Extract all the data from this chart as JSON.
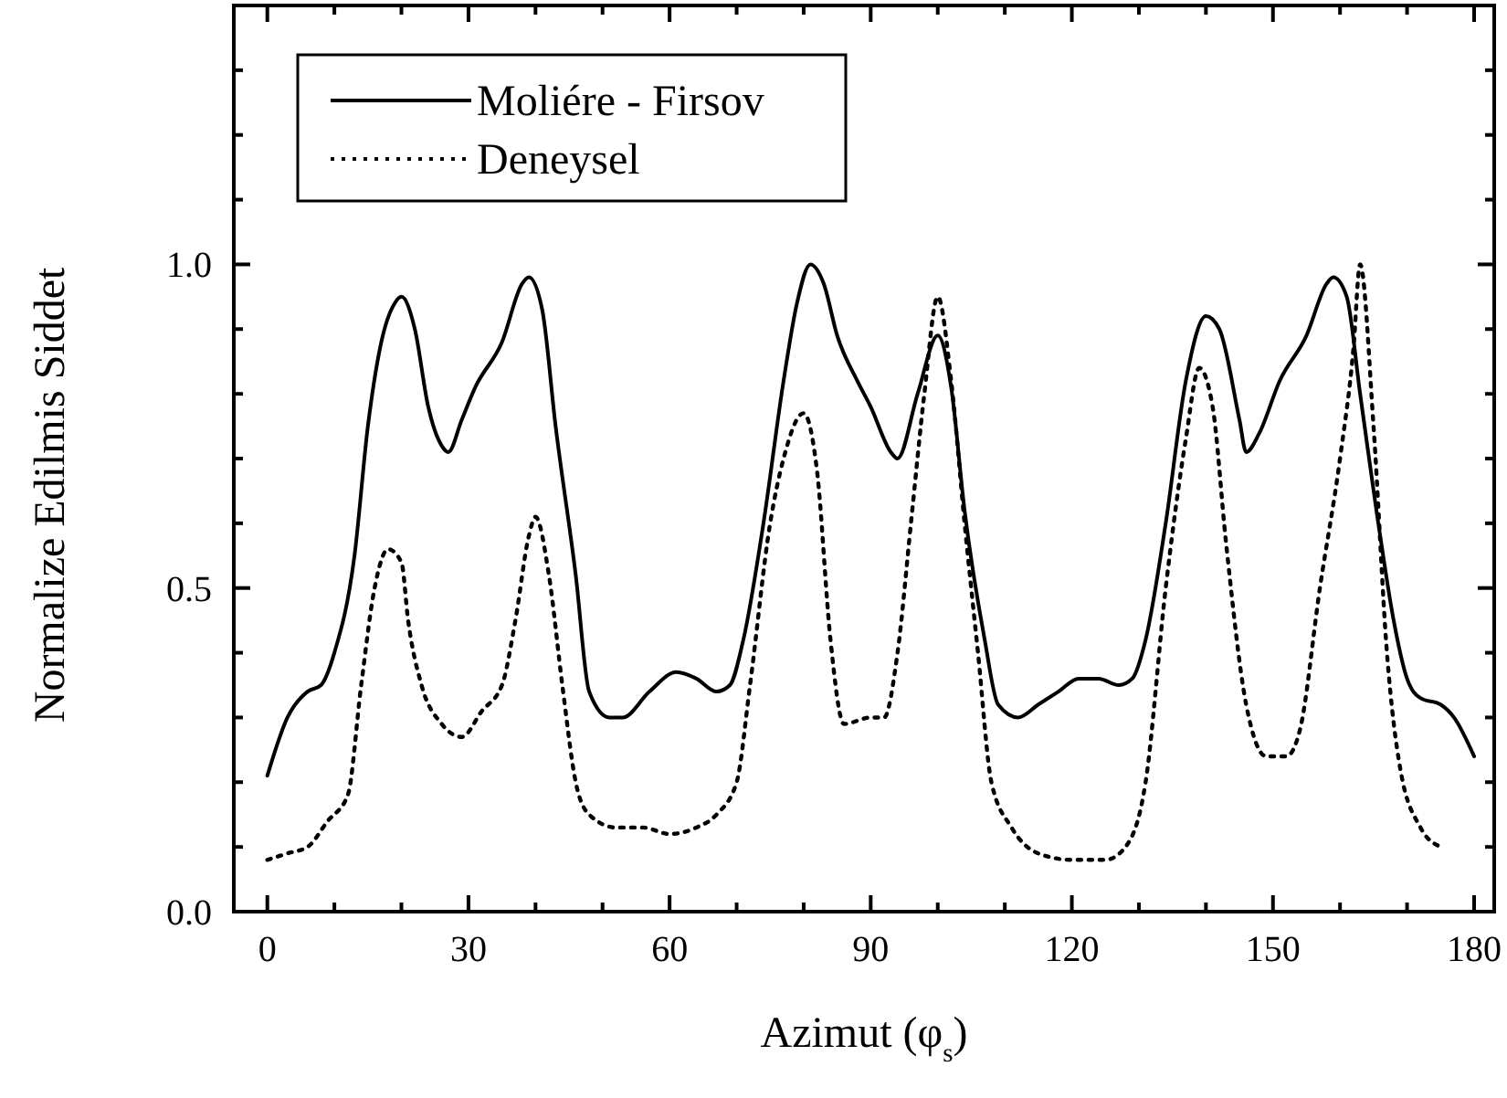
{
  "chart_data": {
    "type": "line",
    "xlabel": "Azimut (φ$_{s}$)",
    "ylabel": "Normalize Edilmis Siddet",
    "xlim": [
      -5,
      183
    ],
    "ylim": [
      0,
      1.4
    ],
    "xticks": [
      0,
      {
        "value": 10,
        "label": null
      },
      {
        "value": 20,
        "label": null
      },
      30,
      {
        "value": 40,
        "label": null
      },
      {
        "value": 50,
        "label": null
      },
      60,
      {
        "value": 70,
        "label": null
      },
      {
        "value": 80,
        "label": null
      },
      90,
      {
        "value": 100,
        "label": null
      },
      {
        "value": 110,
        "label": null
      },
      120,
      {
        "value": 130,
        "label": null
      },
      {
        "value": 140,
        "label": null
      },
      150,
      {
        "value": 160,
        "label": null
      },
      {
        "value": 170,
        "label": null
      },
      180
    ],
    "yticks": [
      {
        "value": 0,
        "label": "0.0"
      },
      {
        "value": 0.1,
        "label": null
      },
      {
        "value": 0.2,
        "label": null
      },
      {
        "value": 0.3,
        "label": null
      },
      {
        "value": 0.4,
        "label": null
      },
      0.5,
      {
        "value": 0.6,
        "label": null
      },
      {
        "value": 0.7,
        "label": null
      },
      {
        "value": 0.8,
        "label": null
      },
      {
        "value": 0.9,
        "label": null
      },
      {
        "value": 1.0,
        "label": "1.0"
      },
      {
        "value": 1.1,
        "label": null
      },
      {
        "value": 1.2,
        "label": null
      },
      {
        "value": 1.3,
        "label": null
      }
    ],
    "grid": false,
    "legend": "top left",
    "marker": "none",
    "series": [
      {
        "name": "Moliére - Firsov",
        "color": "#000000",
        "line_style": "solid",
        "x": [
          0,
          3,
          6,
          8,
          10,
          13,
          15,
          17,
          19,
          20,
          22,
          24,
          26,
          27,
          29,
          31,
          35,
          38,
          39,
          41,
          43,
          46,
          48,
          51,
          53,
          57,
          61,
          64,
          67,
          69,
          71,
          74,
          77,
          79,
          81,
          83,
          85,
          88,
          90,
          93,
          94,
          97,
          100,
          102,
          104,
          107,
          109,
          112,
          115,
          118,
          121,
          124,
          127,
          129,
          131,
          134,
          137,
          140,
          142,
          145,
          146,
          148,
          151,
          155,
          158,
          159,
          161,
          163,
          166,
          168,
          170,
          172,
          175,
          177,
          180
        ],
        "values": [
          0.21,
          0.3,
          0.34,
          0.35,
          0.4,
          0.55,
          0.75,
          0.88,
          0.94,
          0.95,
          0.9,
          0.78,
          0.72,
          0.71,
          0.76,
          0.81,
          0.88,
          0.97,
          0.98,
          0.93,
          0.75,
          0.52,
          0.34,
          0.3,
          0.3,
          0.34,
          0.37,
          0.36,
          0.34,
          0.35,
          0.42,
          0.6,
          0.82,
          0.94,
          1.0,
          0.97,
          0.89,
          0.82,
          0.78,
          0.71,
          0.7,
          0.8,
          0.89,
          0.81,
          0.62,
          0.42,
          0.32,
          0.3,
          0.32,
          0.34,
          0.36,
          0.36,
          0.35,
          0.36,
          0.42,
          0.6,
          0.82,
          0.92,
          0.9,
          0.76,
          0.71,
          0.74,
          0.82,
          0.89,
          0.97,
          0.98,
          0.95,
          0.8,
          0.58,
          0.45,
          0.36,
          0.33,
          0.32,
          0.3,
          0.24
        ]
      },
      {
        "name": "Deneysel",
        "color": "#000000",
        "line_style": "dotted",
        "x": [
          0,
          3,
          6,
          9,
          12,
          14,
          16,
          18,
          20,
          21,
          23,
          26,
          29,
          32,
          35,
          37,
          39,
          40,
          42,
          44,
          46,
          48,
          52,
          56,
          60,
          64,
          67,
          70,
          72,
          75,
          77,
          80,
          82,
          84,
          86,
          90,
          92,
          94,
          96,
          98,
          100,
          102,
          104,
          106,
          108,
          111,
          115,
          120,
          125,
          128,
          131,
          134,
          137,
          139,
          141,
          143,
          146,
          149,
          152,
          154,
          157,
          160,
          162,
          163,
          165,
          167,
          169,
          172,
          175
        ],
        "values": [
          0.08,
          0.09,
          0.1,
          0.14,
          0.18,
          0.35,
          0.5,
          0.56,
          0.54,
          0.45,
          0.35,
          0.29,
          0.27,
          0.31,
          0.35,
          0.45,
          0.58,
          0.61,
          0.52,
          0.35,
          0.2,
          0.15,
          0.13,
          0.13,
          0.12,
          0.13,
          0.15,
          0.2,
          0.35,
          0.6,
          0.7,
          0.77,
          0.68,
          0.42,
          0.29,
          0.3,
          0.3,
          0.4,
          0.6,
          0.8,
          0.95,
          0.82,
          0.6,
          0.4,
          0.2,
          0.13,
          0.09,
          0.08,
          0.08,
          0.1,
          0.2,
          0.5,
          0.73,
          0.84,
          0.78,
          0.57,
          0.32,
          0.24,
          0.24,
          0.28,
          0.5,
          0.7,
          0.87,
          1.0,
          0.75,
          0.4,
          0.22,
          0.13,
          0.1
        ]
      }
    ]
  }
}
